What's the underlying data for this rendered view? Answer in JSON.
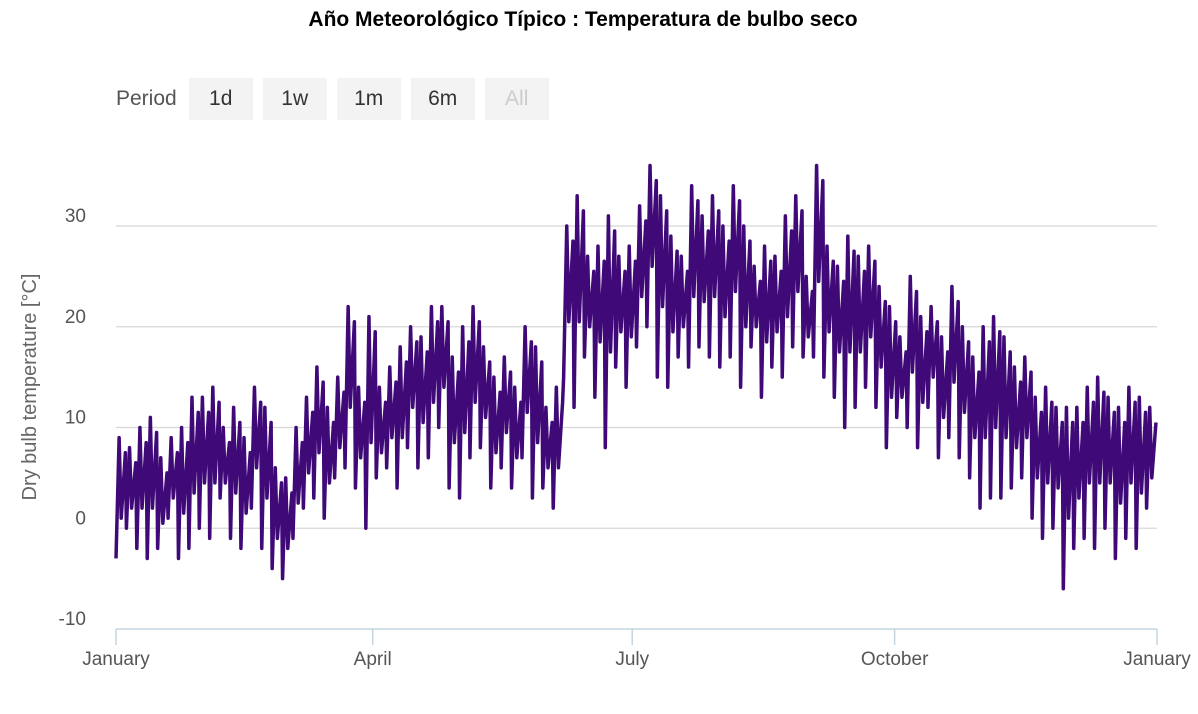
{
  "chart_data": {
    "type": "line",
    "title": "Año Meteorológico Típico : Temperatura de bulbo seco",
    "xlabel": "",
    "ylabel": "Dry bulb temperature [°C]",
    "ylim": [
      -10,
      30
    ],
    "yticks": [
      "30",
      "20",
      "10",
      "0",
      "-10"
    ],
    "ytick_values": [
      30,
      20,
      10,
      0,
      -10
    ],
    "xticks": [
      "January",
      "April",
      "July",
      "October",
      "January"
    ],
    "xtick_days": [
      0,
      90,
      181,
      273,
      365
    ],
    "grid": true,
    "color": "#3f0a78",
    "series": [
      {
        "name": "Dry bulb temperature",
        "highs": [
          9,
          8,
          10,
          11,
          7,
          9,
          10,
          13,
          13,
          14,
          10,
          12,
          9,
          14,
          12,
          6,
          5,
          10,
          13,
          16,
          12,
          15,
          22,
          14,
          21,
          14,
          16,
          18,
          20,
          19,
          22,
          22,
          17,
          20,
          22,
          18,
          15,
          17,
          14,
          20,
          18,
          12,
          14,
          30,
          33,
          27,
          28,
          31,
          27,
          28,
          32,
          36,
          33,
          29,
          27,
          34,
          31,
          33,
          30,
          34,
          30,
          26,
          28,
          27,
          31,
          33,
          25,
          36,
          28,
          26,
          29,
          27,
          28,
          24,
          22,
          19,
          25,
          21,
          22,
          19,
          24,
          20,
          17,
          20,
          21,
          19,
          16,
          17,
          13,
          14,
          12,
          12,
          12,
          14,
          15,
          13,
          12,
          14,
          13,
          12
        ],
        "lows": [
          -3,
          0,
          -2,
          -3,
          -2,
          1,
          -3,
          -2,
          0,
          -1,
          3,
          -1,
          -2,
          2,
          -2,
          -4,
          -5,
          -1,
          2,
          3,
          1,
          5,
          6,
          4,
          0,
          5,
          6,
          4,
          8,
          6,
          7,
          10,
          4,
          3,
          7,
          8,
          4,
          6,
          4,
          7,
          3,
          4,
          2,
          15,
          12,
          17,
          13,
          8,
          16,
          14,
          18,
          20,
          15,
          14,
          17,
          16,
          18,
          17,
          16,
          17,
          14,
          18,
          13,
          16,
          15,
          18,
          17,
          17,
          15,
          13,
          10,
          12,
          14,
          12,
          8,
          11,
          10,
          8,
          12,
          7,
          9,
          7,
          5,
          2,
          3,
          3,
          4,
          5,
          1,
          -1,
          0,
          -6,
          -2,
          -1,
          -2,
          0,
          -3,
          -1,
          -2,
          2
        ]
      }
    ]
  },
  "controls": {
    "period_label": "Period",
    "buttons": [
      {
        "label": "1d",
        "enabled": true
      },
      {
        "label": "1w",
        "enabled": true
      },
      {
        "label": "1m",
        "enabled": true
      },
      {
        "label": "6m",
        "enabled": true
      },
      {
        "label": "All",
        "enabled": false
      }
    ]
  }
}
